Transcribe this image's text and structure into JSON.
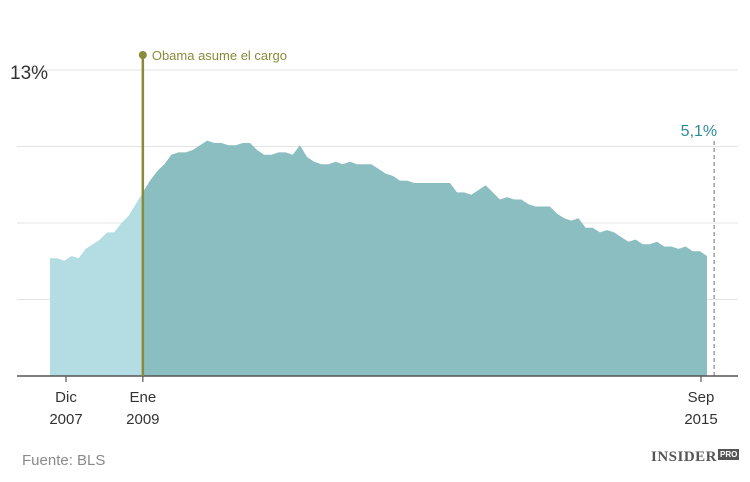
{
  "chart_data": {
    "type": "area",
    "title": "",
    "xlabel": "",
    "ylabel": "",
    "ylim": [
      0,
      13
    ],
    "y_top_label": "13%",
    "x_tick_labels": [
      {
        "month": "Dic",
        "year": "2007",
        "x": "2007-12"
      },
      {
        "month": "Ene",
        "year": "2009",
        "x": "2009-01"
      },
      {
        "month": "Sep",
        "year": "2015",
        "x": "2015-09"
      }
    ],
    "event": {
      "label": "Obama asume el cargo",
      "x": "2009-01",
      "color": "#8a8a3a"
    },
    "end_label": {
      "text": "5,1%",
      "x": "2015-09",
      "value": 5.1,
      "color": "#2e8b95"
    },
    "colors": {
      "before": "#b3dde3",
      "after": "#8bbec1",
      "grid": "#e3e3e3",
      "axis": "#555555"
    },
    "series": [
      {
        "start": "2007-12",
        "values": [
          5.0,
          5.0,
          4.9,
          5.1,
          5.0,
          5.4,
          5.6,
          5.8,
          6.1,
          6.1,
          6.5,
          6.8,
          7.3,
          7.8,
          8.3,
          8.7,
          9.0,
          9.4,
          9.5,
          9.5,
          9.6,
          9.8,
          10.0,
          9.9,
          9.9,
          9.8,
          9.8,
          9.9,
          9.9,
          9.6,
          9.4,
          9.4,
          9.5,
          9.5,
          9.4,
          9.8,
          9.3,
          9.1,
          9.0,
          9.0,
          9.1,
          9.0,
          9.1,
          9.0,
          9.0,
          9.0,
          8.8,
          8.6,
          8.5,
          8.3,
          8.3,
          8.2,
          8.2,
          8.2,
          8.2,
          8.2,
          8.2,
          7.8,
          7.8,
          7.7,
          7.9,
          8.1,
          7.8,
          7.5,
          7.6,
          7.5,
          7.5,
          7.3,
          7.2,
          7.2,
          7.2,
          6.9,
          6.7,
          6.6,
          6.7,
          6.3,
          6.3,
          6.1,
          6.2,
          6.1,
          5.9,
          5.7,
          5.8,
          5.6,
          5.6,
          5.7,
          5.5,
          5.5,
          5.4,
          5.5,
          5.3,
          5.3,
          5.1
        ]
      }
    ]
  },
  "source": "Fuente: BLS",
  "logo": {
    "main": "INSIDER",
    "sup": "PRO"
  }
}
